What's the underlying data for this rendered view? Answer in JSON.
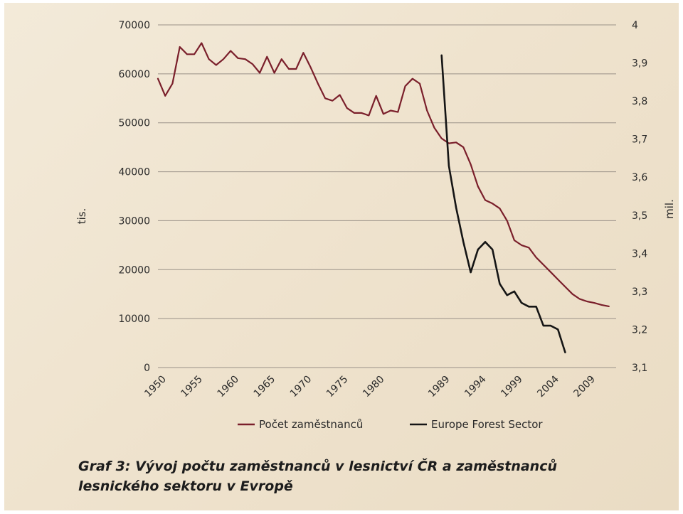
{
  "caption": "Graf 3: Vývoj počtu zaměstnanců v lesnictví ČR a zaměstnanců lesnického sektoru v Evropě",
  "chart_data": {
    "type": "line",
    "title": "",
    "x_tick_labels": [
      "1950",
      "1955",
      "1960",
      "1965",
      "1970",
      "1975",
      "1980",
      "1989",
      "1994",
      "1999",
      "2004",
      "2009"
    ],
    "y_left": {
      "label": "tis.",
      "ticks": [
        "0",
        "10000",
        "20000",
        "30000",
        "40000",
        "50000",
        "60000",
        "70000"
      ],
      "min": 0,
      "max": 70000
    },
    "y_right": {
      "label": "mil.",
      "ticks": [
        "3,1",
        "3,2",
        "3,3",
        "3,4",
        "3,5",
        "3,6",
        "3,7",
        "3,8",
        "3,9",
        "4"
      ],
      "min": 3.1,
      "max": 4.0
    },
    "grid": true,
    "legend_position": "bottom",
    "series": [
      {
        "name": "Počet zaměstnanců",
        "axis": "left",
        "color": "#7a1f2b",
        "x": [
          "1950",
          "1951",
          "1952",
          "1953",
          "1954",
          "1955",
          "1956",
          "1957",
          "1958",
          "1959",
          "1960",
          "1961",
          "1962",
          "1963",
          "1964",
          "1965",
          "1966",
          "1967",
          "1968",
          "1969",
          "1970",
          "1971",
          "1972",
          "1973",
          "1974",
          "1975",
          "1976",
          "1977",
          "1978",
          "1979",
          "1980",
          "1981",
          "1982",
          "1983",
          "1984",
          "1985",
          "1986",
          "1987",
          "1988",
          "1989",
          "1990",
          "1991",
          "1992",
          "1993",
          "1994",
          "1995",
          "1996",
          "1997",
          "1998",
          "1999",
          "2000",
          "2001",
          "2002",
          "2003",
          "2004",
          "2005",
          "2006",
          "2007",
          "2008",
          "2009",
          "2010",
          "2011",
          "2012"
        ],
        "values": [
          59000,
          55500,
          58000,
          65500,
          64000,
          64000,
          66300,
          63000,
          61800,
          63000,
          64700,
          63200,
          63000,
          62000,
          60200,
          63500,
          60200,
          63000,
          61000,
          61000,
          64300,
          61300,
          58000,
          55000,
          54500,
          55700,
          53000,
          52000,
          52000,
          51500,
          55500,
          51800,
          52500,
          52200,
          57500,
          59000,
          58000,
          52500,
          49000,
          46800,
          45800,
          46000,
          45000,
          41500,
          37000,
          34200,
          33500,
          32500,
          30000,
          26000,
          25000,
          24500,
          22500,
          21000,
          19500,
          18000,
          16500,
          15000,
          14000,
          13500,
          13200,
          12800,
          12500
        ]
      },
      {
        "name": "Europe Forest Sector",
        "axis": "right",
        "color": "#151515",
        "x": [
          "1989",
          "1990",
          "1991",
          "1992",
          "1993",
          "1994",
          "1995",
          "1996",
          "1997",
          "1998",
          "1999",
          "2000",
          "2001",
          "2002",
          "2003",
          "2004",
          "2005",
          "2006"
        ],
        "values": [
          3.92,
          3.63,
          3.52,
          3.43,
          3.35,
          3.41,
          3.43,
          3.41,
          3.32,
          3.29,
          3.3,
          3.27,
          3.26,
          3.26,
          3.21,
          3.21,
          3.2,
          3.14
        ]
      }
    ]
  }
}
